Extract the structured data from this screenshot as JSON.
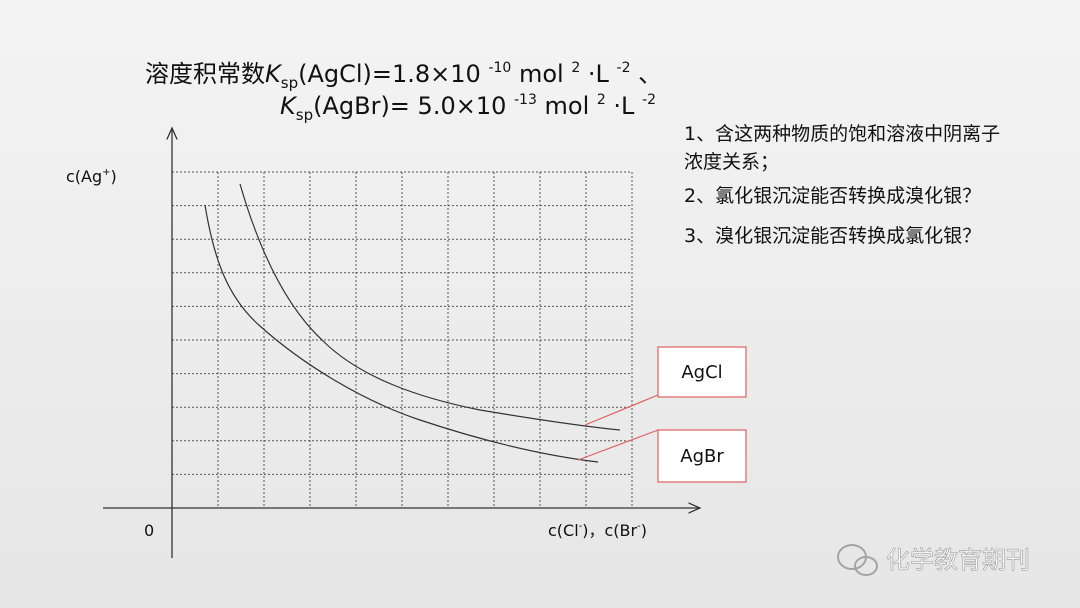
{
  "header": {
    "line1": [
      "溶度积常数",
      "K",
      "sp",
      "(AgCl)=1.8×10 ",
      "-10",
      " mol ",
      "2",
      " ·L ",
      "-2",
      " 、"
    ],
    "line2": [
      "K",
      "sp",
      "(AgBr)= 5.0×10 ",
      "-13",
      " mol ",
      "2",
      " ·L ",
      "-2"
    ]
  },
  "questions": [
    [
      "1、含这两种物质的饱和溶液中阴离子",
      "浓度关系；"
    ],
    [
      "2、氯化银沉淀能否转换成溴化银？"
    ],
    [
      "3、溴化银沉淀能否转换成氯化银？"
    ]
  ],
  "axes": {
    "y_label": [
      "c(Ag",
      "+",
      ")"
    ],
    "origin": "0",
    "x_label": [
      "c(Cl",
      "-",
      ")，c(Br",
      "-",
      ")"
    ]
  },
  "curves": {
    "agcl": "AgCl",
    "agbr": "AgBr"
  },
  "watermark": "化学教育期刊"
}
